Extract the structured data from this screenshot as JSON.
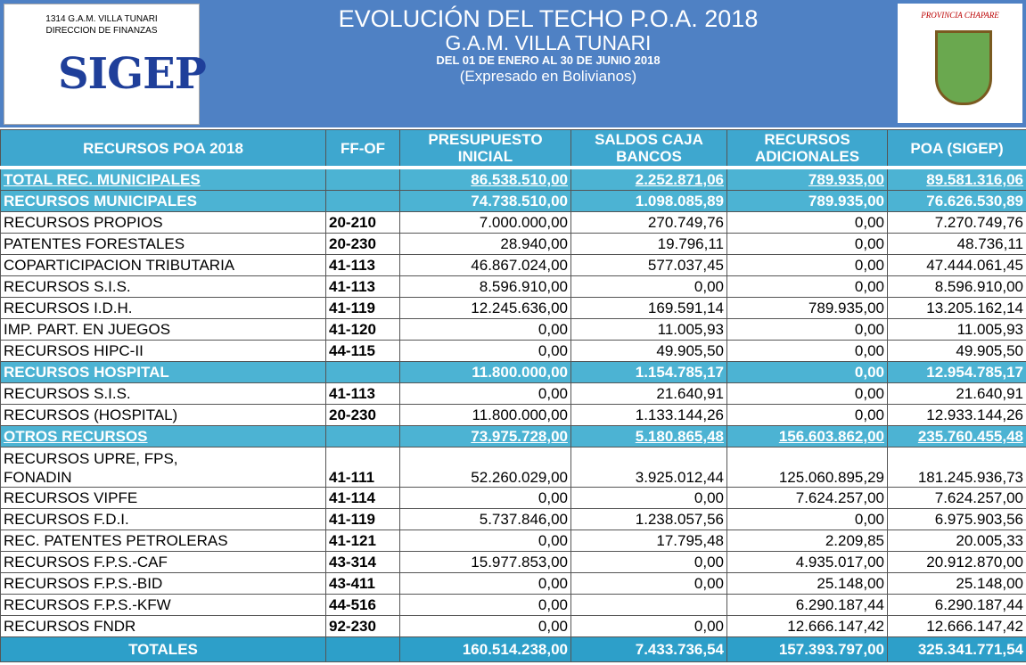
{
  "header": {
    "org": [
      "1314 G.A.M. VILLA TUNARI",
      "DIRECCION DE FINANZAS"
    ],
    "logo": "SIGEP",
    "title": [
      "EVOLUCIÓN DEL TECHO  P.O.A. 2018",
      "G.A.M. VILLA TUNARI",
      "DEL 01 DE ENERO  AL 30 DE JUNIO 2018",
      "(Expresado en Bolivianos)"
    ],
    "emblem": "PROVINCIA CHAPARE"
  },
  "table": {
    "columns": [
      "RECURSOS POA 2018",
      "FF-OF",
      "PRESUPUESTO\nINICIAL",
      "SALDOS  CAJA\nBANCOS",
      "RECURSOS\nADICIONALES",
      "POA (SIGEP)"
    ],
    "rows": [
      [
        "TOTAL REC. MUNICIPALES",
        null,
        "86.538.510,00",
        "2.252.871,06",
        "789.935,00",
        "89.581.316,06"
      ],
      [
        "RECURSOS MUNICIPALES",
        null,
        "74.738.510,00",
        "1.098.085,89",
        "789.935,00",
        "76.626.530,89"
      ],
      [
        "RECURSOS PROPIOS",
        "20-210",
        "7.000.000,00",
        "270.749,76",
        "0,00",
        "7.270.749,76"
      ],
      [
        "PATENTES FORESTALES",
        "20-230",
        "28.940,00",
        "19.796,11",
        "0,00",
        "48.736,11"
      ],
      [
        "COPARTICIPACION TRIBUTARIA",
        "41-113",
        "46.867.024,00",
        "577.037,45",
        "0,00",
        "47.444.061,45"
      ],
      [
        "RECURSOS S.I.S.",
        "41-113",
        "8.596.910,00",
        "0,00",
        "0,00",
        "8.596.910,00"
      ],
      [
        "RECURSOS I.D.H.",
        "41-119",
        "12.245.636,00",
        "169.591,14",
        "789.935,00",
        "13.205.162,14"
      ],
      [
        "IMP.  PART. EN JUEGOS",
        "41-120",
        "0,00",
        "11.005,93",
        "0,00",
        "11.005,93"
      ],
      [
        "RECURSOS HIPC-II",
        "44-115",
        "0,00",
        "49.905,50",
        "0,00",
        "49.905,50"
      ],
      [
        "RECURSOS HOSPITAL",
        null,
        "11.800.000,00",
        "1.154.785,17",
        "0,00",
        "12.954.785,17"
      ],
      [
        "RECURSOS S.I.S.",
        "41-113",
        "0,00",
        "21.640,91",
        "0,00",
        "21.640,91"
      ],
      [
        "RECURSOS  (HOSPITAL)",
        "20-230",
        "11.800.000,00",
        "1.133.144,26",
        "0,00",
        "12.933.144,26"
      ],
      [
        "OTROS RECURSOS",
        null,
        "73.975.728,00",
        "5.180.865,48",
        "156.603.862,00",
        "235.760.455,48"
      ],
      [
        "RECURSOS UPRE, FPS,\nFONADIN",
        "41-111",
        "52.260.029,00",
        "3.925.012,44",
        "125.060.895,29",
        "181.245.936,73"
      ],
      [
        "RECURSOS VIPFE",
        "41-114",
        "0,00",
        "0,00",
        "7.624.257,00",
        "7.624.257,00"
      ],
      [
        "RECURSOS F.D.I.",
        "41-119",
        "5.737.846,00",
        "1.238.057,56",
        "0,00",
        "6.975.903,56"
      ],
      [
        "REC. PATENTES PETROLERAS",
        "41-121",
        "0,00",
        "17.795,48",
        "2.209,85",
        "20.005,33"
      ],
      [
        "RECURSOS F.P.S.-CAF",
        "43-314",
        "15.977.853,00",
        "0,00",
        "4.935.017,00",
        "20.912.870,00"
      ],
      [
        "RECURSOS F.P.S.-BID",
        "43-411",
        "0,00",
        "0,00",
        "25.148,00",
        "25.148,00"
      ],
      [
        "RECURSOS F.P.S.-KFW",
        "44-516",
        "0,00",
        null,
        "6.290.187,44",
        "6.290.187,44"
      ],
      [
        "RECURSOS FNDR",
        "92-230",
        "0,00",
        "0,00",
        "12.666.147,42",
        "12.666.147,42"
      ],
      [
        "TOTALES",
        null,
        "160.514.238,00",
        "7.433.736,54",
        "157.393.797,00",
        "325.341.771,54"
      ]
    ]
  }
}
